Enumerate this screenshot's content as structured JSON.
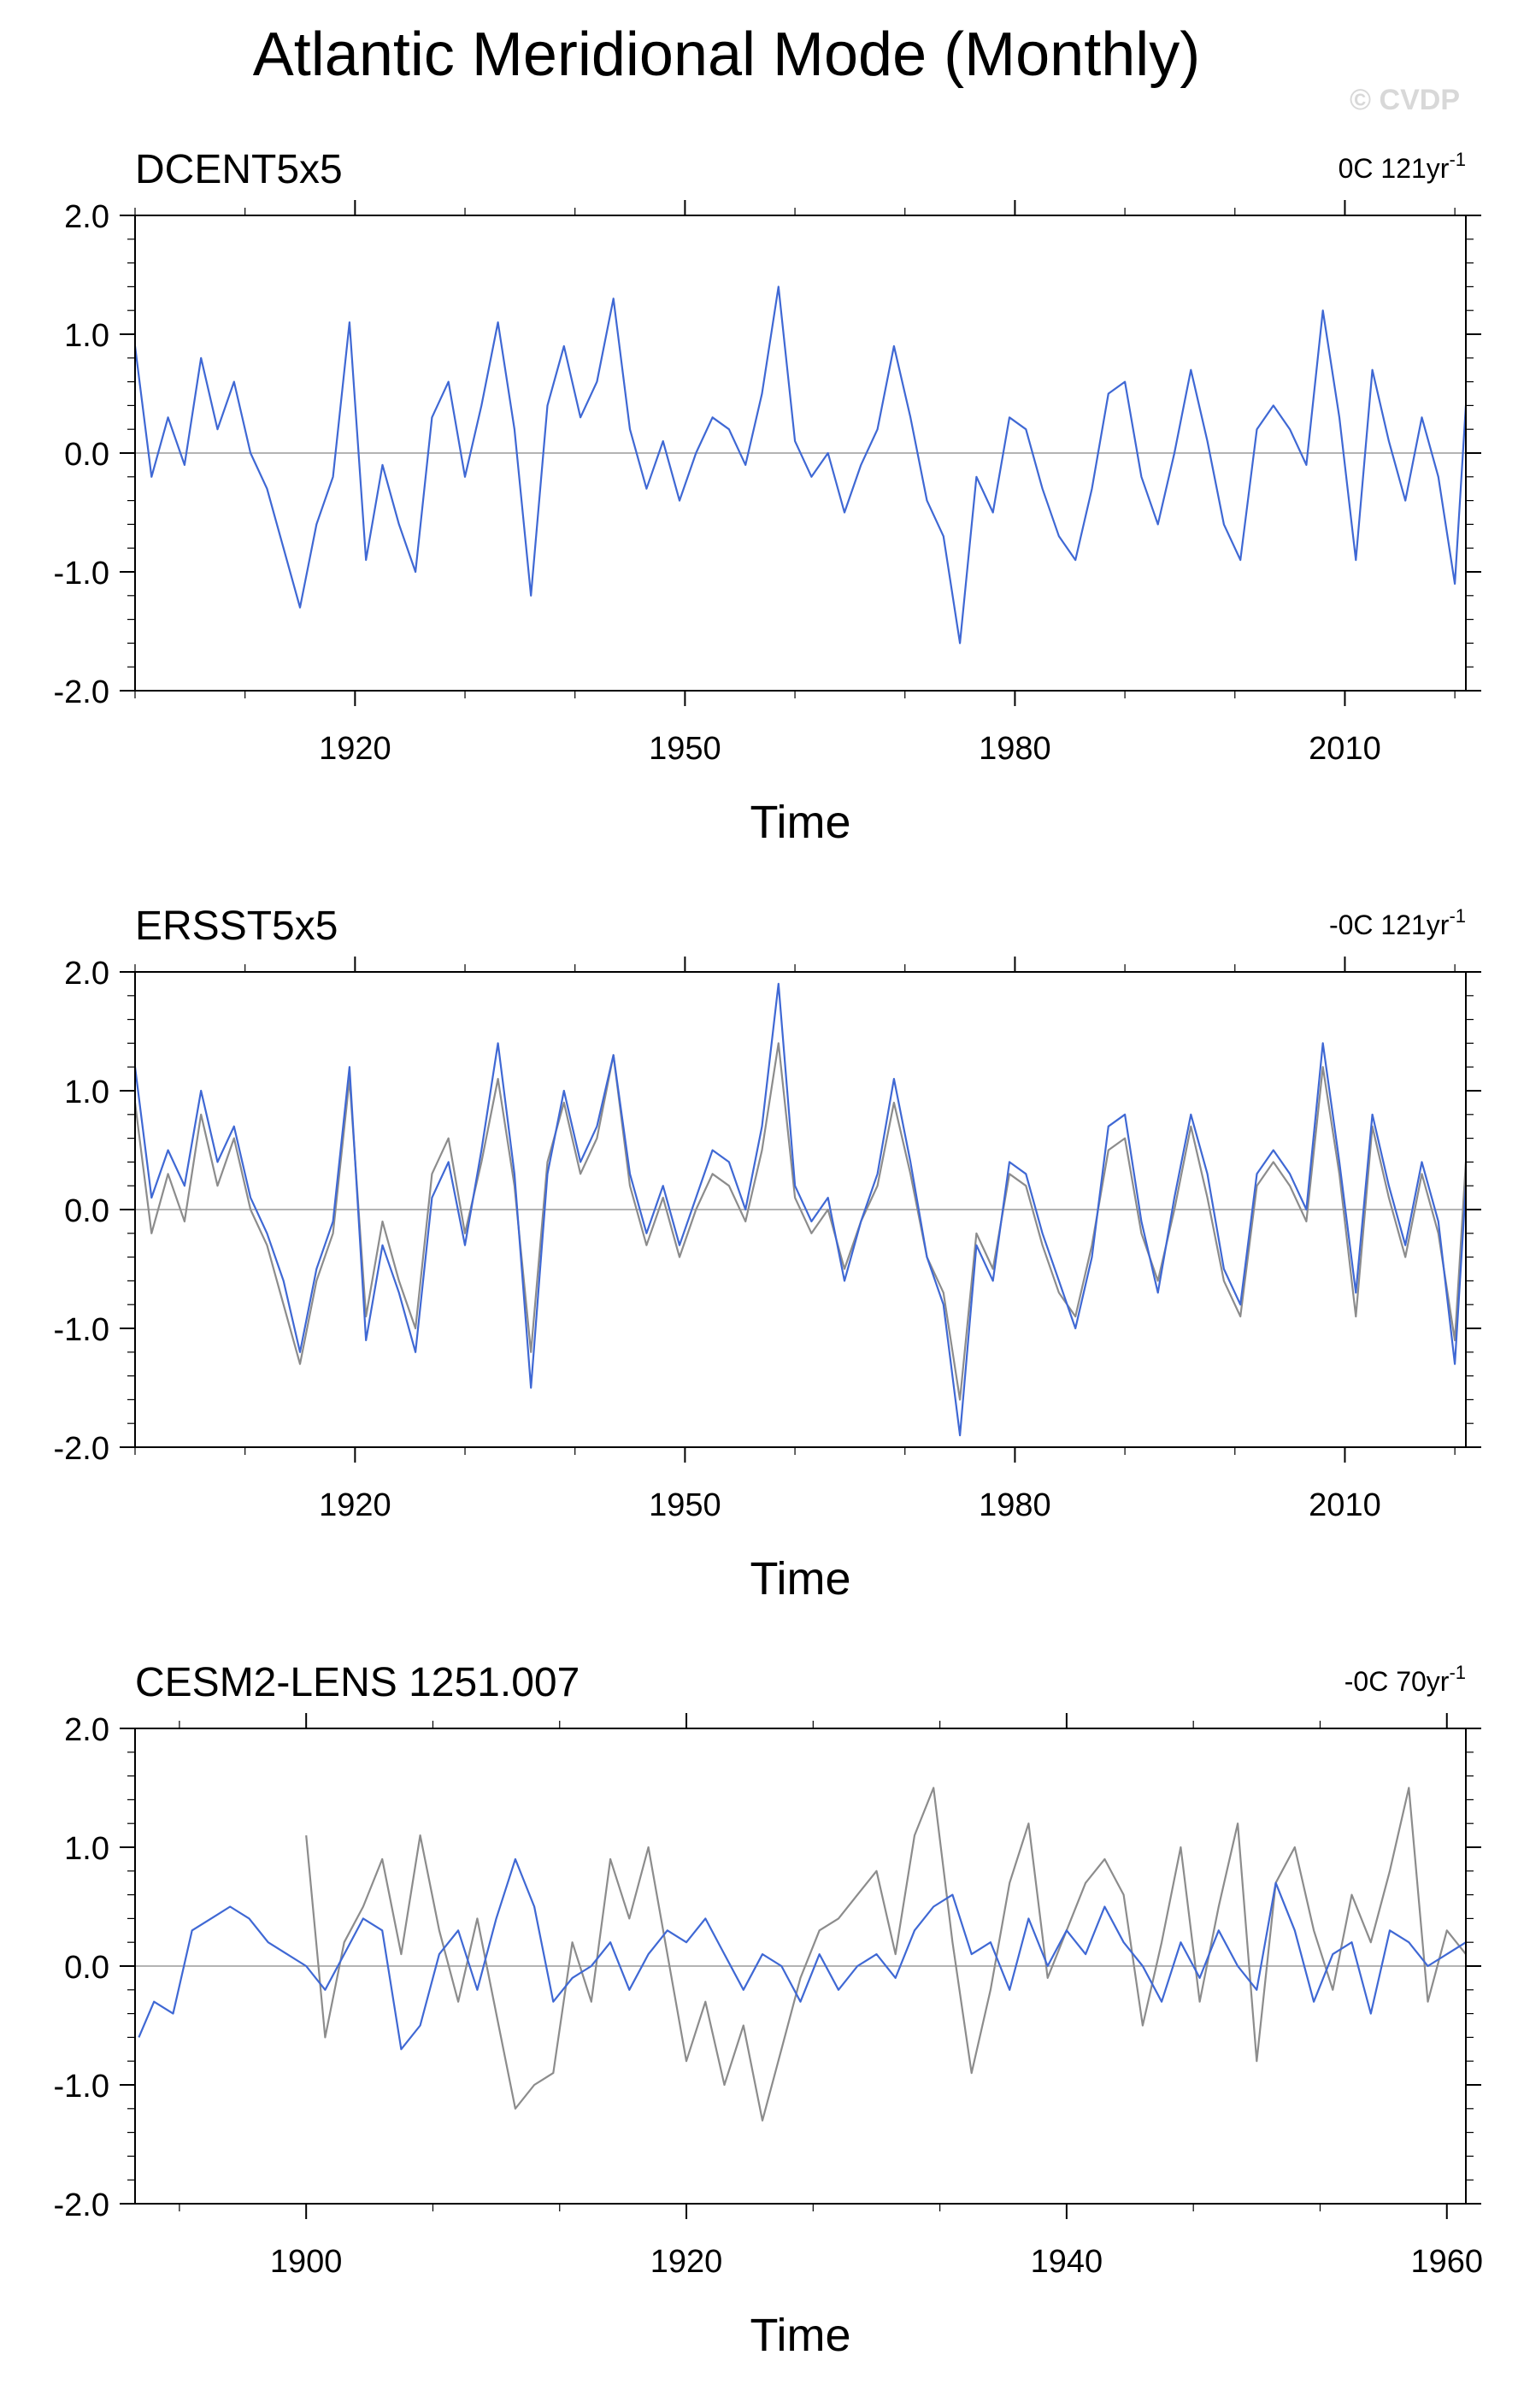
{
  "figure": {
    "title": "Atlantic Meridional Mode (Monthly)",
    "watermark": "© CVDP"
  },
  "colors": {
    "primary_series": "#3f68d4",
    "reference_series": "#8c8c8c",
    "axis": "#000000",
    "zero_line": "#9a9a9a"
  },
  "chart_data": [
    {
      "type": "line",
      "title": "DCENT5x5",
      "annotation": {
        "prefix": "0C 121yr",
        "superscript": "-1"
      },
      "xlabel": "Time",
      "xlim": [
        1900,
        2021
      ],
      "ylim": [
        -2.0,
        2.0
      ],
      "x_ticks": [
        1920,
        1950,
        1980,
        2010
      ],
      "x_tick_labels": [
        "1920",
        "1950",
        "1980",
        "2010"
      ],
      "y_ticks": [
        -2.0,
        -1.0,
        0.0,
        1.0,
        2.0
      ],
      "y_tick_labels": [
        "-2.0",
        "-1.0",
        "0.0",
        "1.0",
        "2.0"
      ],
      "grid": false,
      "zero_line": true,
      "series": [
        {
          "color": "#3f68d4",
          "x": [
            1900.0,
            1901.5,
            1903.0,
            1904.5,
            1906.0,
            1907.5,
            1909.0,
            1910.5,
            1912.0,
            1913.5,
            1915.0,
            1916.5,
            1918.0,
            1919.5,
            1921.0,
            1922.5,
            1924.0,
            1925.5,
            1927.0,
            1928.5,
            1930.0,
            1931.5,
            1933.0,
            1934.5,
            1936.0,
            1937.5,
            1939.0,
            1940.5,
            1942.0,
            1943.5,
            1945.0,
            1946.5,
            1948.0,
            1949.5,
            1951.0,
            1952.5,
            1954.0,
            1955.5,
            1957.0,
            1958.5,
            1960.0,
            1961.5,
            1963.0,
            1964.5,
            1966.0,
            1967.5,
            1969.0,
            1970.5,
            1972.0,
            1973.5,
            1975.0,
            1976.5,
            1978.0,
            1979.5,
            1981.0,
            1982.5,
            1984.0,
            1985.5,
            1987.0,
            1988.5,
            1990.0,
            1991.5,
            1993.0,
            1994.5,
            1996.0,
            1997.5,
            1999.0,
            2000.5,
            2002.0,
            2003.5,
            2005.0,
            2006.5,
            2008.0,
            2009.5,
            2011.0,
            2012.5,
            2014.0,
            2015.5,
            2017.0,
            2018.5,
            2020.0,
            2021.0
          ],
          "values": [
            0.9,
            -0.2,
            0.3,
            -0.1,
            0.8,
            0.2,
            0.6,
            0.0,
            -0.3,
            -0.8,
            -1.3,
            -0.6,
            -0.2,
            1.1,
            -0.9,
            -0.1,
            -0.6,
            -1.0,
            0.3,
            0.6,
            -0.2,
            0.4,
            1.1,
            0.2,
            -1.2,
            0.4,
            0.9,
            0.3,
            0.6,
            1.3,
            0.2,
            -0.3,
            0.1,
            -0.4,
            0.0,
            0.3,
            0.2,
            -0.1,
            0.5,
            1.4,
            0.1,
            -0.2,
            0.0,
            -0.5,
            -0.1,
            0.2,
            0.9,
            0.3,
            -0.4,
            -0.7,
            -1.6,
            -0.2,
            -0.5,
            0.3,
            0.2,
            -0.3,
            -0.7,
            -0.9,
            -0.3,
            0.5,
            0.6,
            -0.2,
            -0.6,
            0.0,
            0.7,
            0.1,
            -0.6,
            -0.9,
            0.2,
            0.4,
            0.2,
            -0.1,
            1.2,
            0.3,
            -0.9,
            0.7,
            0.1,
            -0.4,
            0.3,
            -0.2,
            -1.1,
            0.4
          ]
        }
      ]
    },
    {
      "type": "line",
      "title": "ERSST5x5",
      "annotation": {
        "prefix": "-0C 121yr",
        "superscript": "-1"
      },
      "xlabel": "Time",
      "xlim": [
        1900,
        2021
      ],
      "ylim": [
        -2.0,
        2.0
      ],
      "x_ticks": [
        1920,
        1950,
        1980,
        2010
      ],
      "x_tick_labels": [
        "1920",
        "1950",
        "1980",
        "2010"
      ],
      "y_ticks": [
        -2.0,
        -1.0,
        0.0,
        1.0,
        2.0
      ],
      "y_tick_labels": [
        "-2.0",
        "-1.0",
        "0.0",
        "1.0",
        "2.0"
      ],
      "grid": false,
      "zero_line": true,
      "series": [
        {
          "color": "#8c8c8c",
          "x": [
            1900.0,
            1901.5,
            1903.0,
            1904.5,
            1906.0,
            1907.5,
            1909.0,
            1910.5,
            1912.0,
            1913.5,
            1915.0,
            1916.5,
            1918.0,
            1919.5,
            1921.0,
            1922.5,
            1924.0,
            1925.5,
            1927.0,
            1928.5,
            1930.0,
            1931.5,
            1933.0,
            1934.5,
            1936.0,
            1937.5,
            1939.0,
            1940.5,
            1942.0,
            1943.5,
            1945.0,
            1946.5,
            1948.0,
            1949.5,
            1951.0,
            1952.5,
            1954.0,
            1955.5,
            1957.0,
            1958.5,
            1960.0,
            1961.5,
            1963.0,
            1964.5,
            1966.0,
            1967.5,
            1969.0,
            1970.5,
            1972.0,
            1973.5,
            1975.0,
            1976.5,
            1978.0,
            1979.5,
            1981.0,
            1982.5,
            1984.0,
            1985.5,
            1987.0,
            1988.5,
            1990.0,
            1991.5,
            1993.0,
            1994.5,
            1996.0,
            1997.5,
            1999.0,
            2000.5,
            2002.0,
            2003.5,
            2005.0,
            2006.5,
            2008.0,
            2009.5,
            2011.0,
            2012.5,
            2014.0,
            2015.5,
            2017.0,
            2018.5,
            2020.0,
            2021.0
          ],
          "values": [
            0.9,
            -0.2,
            0.3,
            -0.1,
            0.8,
            0.2,
            0.6,
            0.0,
            -0.3,
            -0.8,
            -1.3,
            -0.6,
            -0.2,
            1.1,
            -0.9,
            -0.1,
            -0.6,
            -1.0,
            0.3,
            0.6,
            -0.2,
            0.4,
            1.1,
            0.2,
            -1.2,
            0.4,
            0.9,
            0.3,
            0.6,
            1.3,
            0.2,
            -0.3,
            0.1,
            -0.4,
            0.0,
            0.3,
            0.2,
            -0.1,
            0.5,
            1.4,
            0.1,
            -0.2,
            0.0,
            -0.5,
            -0.1,
            0.2,
            0.9,
            0.3,
            -0.4,
            -0.7,
            -1.6,
            -0.2,
            -0.5,
            0.3,
            0.2,
            -0.3,
            -0.7,
            -0.9,
            -0.3,
            0.5,
            0.6,
            -0.2,
            -0.6,
            0.0,
            0.7,
            0.1,
            -0.6,
            -0.9,
            0.2,
            0.4,
            0.2,
            -0.1,
            1.2,
            0.3,
            -0.9,
            0.7,
            0.1,
            -0.4,
            0.3,
            -0.2,
            -1.1,
            0.4
          ]
        },
        {
          "color": "#3f68d4",
          "x": [
            1900.0,
            1901.5,
            1903.0,
            1904.5,
            1906.0,
            1907.5,
            1909.0,
            1910.5,
            1912.0,
            1913.5,
            1915.0,
            1916.5,
            1918.0,
            1919.5,
            1921.0,
            1922.5,
            1924.0,
            1925.5,
            1927.0,
            1928.5,
            1930.0,
            1931.5,
            1933.0,
            1934.5,
            1936.0,
            1937.5,
            1939.0,
            1940.5,
            1942.0,
            1943.5,
            1945.0,
            1946.5,
            1948.0,
            1949.5,
            1951.0,
            1952.5,
            1954.0,
            1955.5,
            1957.0,
            1958.5,
            1960.0,
            1961.5,
            1963.0,
            1964.5,
            1966.0,
            1967.5,
            1969.0,
            1970.5,
            1972.0,
            1973.5,
            1975.0,
            1976.5,
            1978.0,
            1979.5,
            1981.0,
            1982.5,
            1984.0,
            1985.5,
            1987.0,
            1988.5,
            1990.0,
            1991.5,
            1993.0,
            1994.5,
            1996.0,
            1997.5,
            1999.0,
            2000.5,
            2002.0,
            2003.5,
            2005.0,
            2006.5,
            2008.0,
            2009.5,
            2011.0,
            2012.5,
            2014.0,
            2015.5,
            2017.0,
            2018.5,
            2020.0,
            2021.0
          ],
          "values": [
            1.2,
            0.1,
            0.5,
            0.2,
            1.0,
            0.4,
            0.7,
            0.1,
            -0.2,
            -0.6,
            -1.2,
            -0.5,
            -0.1,
            1.2,
            -1.1,
            -0.3,
            -0.7,
            -1.2,
            0.1,
            0.4,
            -0.3,
            0.5,
            1.4,
            0.3,
            -1.5,
            0.3,
            1.0,
            0.4,
            0.7,
            1.3,
            0.3,
            -0.2,
            0.2,
            -0.3,
            0.1,
            0.5,
            0.4,
            0.0,
            0.7,
            1.9,
            0.2,
            -0.1,
            0.1,
            -0.6,
            -0.1,
            0.3,
            1.1,
            0.4,
            -0.4,
            -0.8,
            -1.9,
            -0.3,
            -0.6,
            0.4,
            0.3,
            -0.2,
            -0.6,
            -1.0,
            -0.4,
            0.7,
            0.8,
            -0.1,
            -0.7,
            0.1,
            0.8,
            0.3,
            -0.5,
            -0.8,
            0.3,
            0.5,
            0.3,
            0.0,
            1.4,
            0.4,
            -0.7,
            0.8,
            0.2,
            -0.3,
            0.4,
            -0.1,
            -1.3,
            0.2
          ]
        }
      ]
    },
    {
      "type": "line",
      "title": "CESM2-LENS 1251.007",
      "annotation": {
        "prefix": "-0C 70yr",
        "superscript": "-1"
      },
      "xlabel": "Time",
      "xlim": [
        1891,
        1961
      ],
      "ylim": [
        -2.0,
        2.0
      ],
      "x_ticks": [
        1900,
        1920,
        1940,
        1960
      ],
      "x_tick_labels": [
        "1900",
        "1920",
        "1940",
        "1960"
      ],
      "y_ticks": [
        -2.0,
        -1.0,
        0.0,
        1.0,
        2.0
      ],
      "y_tick_labels": [
        "-2.0",
        "-1.0",
        "0.0",
        "1.0",
        "2.0"
      ],
      "grid": false,
      "zero_line": true,
      "series": [
        {
          "color": "#8c8c8c",
          "x": [
            1900.0,
            1901.0,
            1902.0,
            1903.0,
            1904.0,
            1905.0,
            1906.0,
            1907.0,
            1908.0,
            1909.0,
            1910.0,
            1911.0,
            1912.0,
            1913.0,
            1914.0,
            1915.0,
            1916.0,
            1917.0,
            1918.0,
            1919.0,
            1920.0,
            1921.0,
            1922.0,
            1923.0,
            1924.0,
            1925.0,
            1926.0,
            1927.0,
            1928.0,
            1929.0,
            1930.0,
            1931.0,
            1932.0,
            1933.0,
            1934.0,
            1935.0,
            1936.0,
            1937.0,
            1938.0,
            1939.0,
            1940.0,
            1941.0,
            1942.0,
            1943.0,
            1944.0,
            1945.0,
            1946.0,
            1947.0,
            1948.0,
            1949.0,
            1950.0,
            1951.0,
            1952.0,
            1953.0,
            1954.0,
            1955.0,
            1956.0,
            1957.0,
            1958.0,
            1959.0,
            1960.0,
            1961.0
          ],
          "values": [
            1.1,
            -0.6,
            0.2,
            0.5,
            0.9,
            0.1,
            1.1,
            0.3,
            -0.3,
            0.4,
            -0.4,
            -1.2,
            -1.0,
            -0.9,
            0.2,
            -0.3,
            0.9,
            0.4,
            1.0,
            0.1,
            -0.8,
            -0.3,
            -1.0,
            -0.5,
            -1.3,
            -0.7,
            -0.1,
            0.3,
            0.4,
            0.6,
            0.8,
            0.1,
            1.1,
            1.5,
            0.2,
            -0.9,
            -0.2,
            0.7,
            1.2,
            -0.1,
            0.3,
            0.7,
            0.9,
            0.6,
            -0.5,
            0.2,
            1.0,
            -0.3,
            0.5,
            1.2,
            -0.8,
            0.7,
            1.0,
            0.3,
            -0.2,
            0.6,
            0.2,
            0.8,
            1.5,
            -0.3,
            0.3,
            0.1
          ]
        },
        {
          "color": "#3f68d4",
          "x": [
            1891.2,
            1892.0,
            1893.0,
            1894.0,
            1895.0,
            1896.0,
            1897.0,
            1898.0,
            1899.0,
            1900.0,
            1901.0,
            1902.0,
            1903.0,
            1904.0,
            1905.0,
            1906.0,
            1907.0,
            1908.0,
            1909.0,
            1910.0,
            1911.0,
            1912.0,
            1913.0,
            1914.0,
            1915.0,
            1916.0,
            1917.0,
            1918.0,
            1919.0,
            1920.0,
            1921.0,
            1922.0,
            1923.0,
            1924.0,
            1925.0,
            1926.0,
            1927.0,
            1928.0,
            1929.0,
            1930.0,
            1931.0,
            1932.0,
            1933.0,
            1934.0,
            1935.0,
            1936.0,
            1937.0,
            1938.0,
            1939.0,
            1940.0,
            1941.0,
            1942.0,
            1943.0,
            1944.0,
            1945.0,
            1946.0,
            1947.0,
            1948.0,
            1949.0,
            1950.0,
            1951.0,
            1952.0,
            1953.0,
            1954.0,
            1955.0,
            1956.0,
            1957.0,
            1958.0,
            1959.0,
            1960.0,
            1961.0
          ],
          "values": [
            -0.6,
            -0.3,
            -0.4,
            0.3,
            0.4,
            0.5,
            0.4,
            0.2,
            0.1,
            0.0,
            -0.2,
            0.1,
            0.4,
            0.3,
            -0.7,
            -0.5,
            0.1,
            0.3,
            -0.2,
            0.4,
            0.9,
            0.5,
            -0.3,
            -0.1,
            0.0,
            0.2,
            -0.2,
            0.1,
            0.3,
            0.2,
            0.4,
            0.1,
            -0.2,
            0.1,
            0.0,
            -0.3,
            0.1,
            -0.2,
            0.0,
            0.1,
            -0.1,
            0.3,
            0.5,
            0.6,
            0.1,
            0.2,
            -0.2,
            0.4,
            0.0,
            0.3,
            0.1,
            0.5,
            0.2,
            0.0,
            -0.3,
            0.2,
            -0.1,
            0.3,
            0.0,
            -0.2,
            0.7,
            0.3,
            -0.3,
            0.1,
            0.2,
            -0.4,
            0.3,
            0.2,
            0.0,
            0.1,
            0.2
          ]
        }
      ]
    }
  ]
}
